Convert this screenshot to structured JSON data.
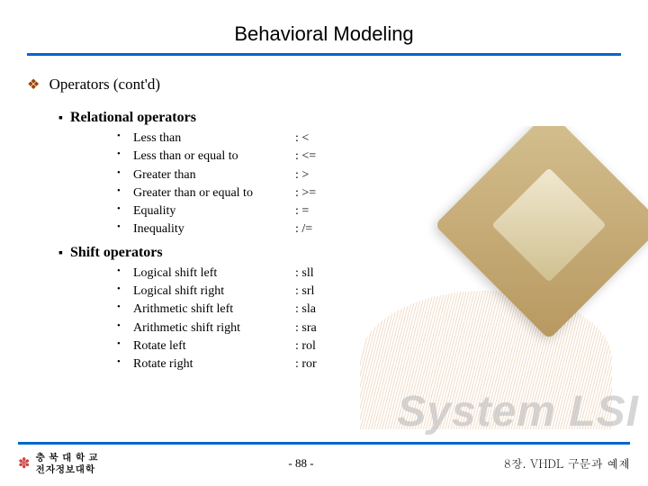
{
  "title": "Behavioral Modeling",
  "section": {
    "bullet": "❖",
    "label": "Operators (cont'd)"
  },
  "subsections": [
    {
      "bullet": "▪",
      "title": "Relational operators",
      "items": [
        {
          "label": "Less than",
          "symbol": ": <"
        },
        {
          "label": "Less than or equal to",
          "symbol": ": <="
        },
        {
          "label": "Greater than",
          "symbol": ": >"
        },
        {
          "label": "Greater than or equal to",
          "symbol": ": >="
        },
        {
          "label": "Equality",
          "symbol": ": ="
        },
        {
          "label": "Inequality",
          "symbol": ": /="
        }
      ]
    },
    {
      "bullet": "▪",
      "title": "Shift operators",
      "items": [
        {
          "label": "Logical shift left",
          "symbol": ": sll"
        },
        {
          "label": "Logical shift right",
          "symbol": ": srl"
        },
        {
          "label": "Arithmetic shift left",
          "symbol": ": sla"
        },
        {
          "label": "Arithmetic shift right",
          "symbol": ": sra"
        },
        {
          "label": "Rotate left",
          "symbol": ": rol"
        },
        {
          "label": "Rotate right",
          "symbol": ": ror"
        }
      ]
    }
  ],
  "item_bullet": "•",
  "watermark": "System LSI",
  "footer": {
    "flower": "✽",
    "univ_line1": "충 북 대 학 교",
    "univ_line2": "전자정보대학",
    "page": "- 88 -",
    "chapter": "8장. VHDL 구문과 예제"
  },
  "colors": {
    "accent": "#0066cc",
    "bullet_brown": "#994400",
    "text": "#000000",
    "watermark": "rgba(180,180,180,0.55)"
  }
}
